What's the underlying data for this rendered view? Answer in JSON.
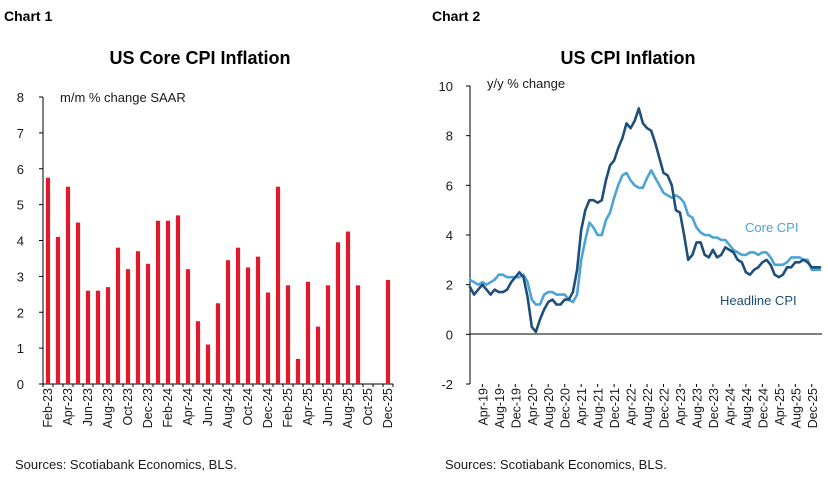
{
  "charts": [
    {
      "label": "Chart 1",
      "source": "Sources: Scotiabank Economics, BLS."
    },
    {
      "label": "Chart 2",
      "source": "Sources: Scotiabank Economics, BLS."
    }
  ],
  "colors": {
    "bar": "#e0192c",
    "headline": "#1f4e79",
    "core": "#4ba3d6",
    "axis": "#000000",
    "text": "#1a1a1a"
  },
  "chart_data": [
    {
      "type": "bar",
      "title": "US Core CPI Inflation",
      "ylabel": "m/m % change SAAR",
      "xlabel": "",
      "ylim": [
        0,
        8
      ],
      "yticks": [
        0,
        1,
        2,
        3,
        4,
        5,
        6,
        7,
        8
      ],
      "grid": false,
      "categories": [
        "Feb-23",
        "Mar-23",
        "Apr-23",
        "May-23",
        "Jun-23",
        "Jul-23",
        "Aug-23",
        "Sep-23",
        "Oct-23",
        "Nov-23",
        "Dec-23",
        "Jan-24",
        "Feb-24",
        "Mar-24",
        "Apr-24",
        "May-24",
        "Jun-24",
        "Jul-24",
        "Aug-24",
        "Sep-24",
        "Oct-24",
        "Nov-24",
        "Dec-24",
        "Jan-25",
        "Feb-25",
        "Mar-25",
        "Apr-25",
        "May-25",
        "Jun-25",
        "Jul-25",
        "Aug-25",
        "Sep-25",
        "Oct-25",
        "Nov-25",
        "Dec-25"
      ],
      "tick_labels": [
        "Feb-23",
        "Apr-23",
        "Jun-23",
        "Aug-23",
        "Oct-23",
        "Dec-23",
        "Feb-24",
        "Apr-24",
        "Jun-24",
        "Aug-24",
        "Oct-24",
        "Dec-24",
        "Feb-25",
        "Apr-25",
        "Jun-25",
        "Aug-25",
        "Oct-25",
        "Dec-25"
      ],
      "values": [
        5.75,
        4.1,
        5.5,
        4.5,
        2.6,
        2.6,
        2.7,
        3.8,
        3.2,
        3.7,
        3.35,
        4.55,
        4.55,
        4.7,
        3.2,
        1.75,
        1.1,
        2.25,
        3.45,
        3.8,
        3.25,
        3.55,
        2.55,
        5.5,
        2.75,
        0.7,
        2.85,
        1.6,
        2.75,
        3.95,
        4.25,
        2.75,
        null,
        null,
        2.9
      ]
    },
    {
      "type": "line",
      "title": "US CPI Inflation",
      "ylabel": "y/y % change",
      "xlabel": "",
      "ylim": [
        -2,
        10
      ],
      "yticks": [
        -2,
        0,
        2,
        4,
        6,
        8,
        10
      ],
      "grid": false,
      "tick_labels": [
        "Apr-19",
        "Aug-19",
        "Dec-19",
        "Apr-20",
        "Aug-20",
        "Dec-20",
        "Apr-21",
        "Aug-21",
        "Dec-21",
        "Apr-22",
        "Aug-22",
        "Dec-22",
        "Apr-23",
        "Aug-23",
        "Dec-23",
        "Apr-24",
        "Aug-24",
        "Dec-24",
        "Apr-25",
        "Aug-25",
        "Dec-25"
      ],
      "x_range": [
        "Jan-19",
        "Dec-25"
      ],
      "series": [
        {
          "name": "Core CPI",
          "values": [
            2.2,
            2.1,
            2.0,
            2.1,
            2.0,
            2.1,
            2.2,
            2.4,
            2.4,
            2.3,
            2.3,
            2.3,
            2.3,
            2.4,
            2.1,
            1.4,
            1.2,
            1.2,
            1.6,
            1.7,
            1.7,
            1.6,
            1.6,
            1.6,
            1.4,
            1.3,
            1.6,
            3.0,
            3.8,
            4.5,
            4.3,
            4.0,
            4.0,
            4.6,
            4.9,
            5.5,
            6.0,
            6.4,
            6.5,
            6.2,
            6.0,
            5.9,
            5.9,
            6.3,
            6.6,
            6.3,
            6.0,
            5.7,
            5.6,
            5.5,
            5.6,
            5.5,
            5.3,
            4.8,
            4.7,
            4.3,
            4.1,
            4.0,
            4.0,
            3.9,
            3.9,
            3.8,
            3.8,
            3.6,
            3.4,
            3.3,
            3.2,
            3.2,
            3.3,
            3.3,
            3.2,
            3.3,
            3.3,
            3.1,
            2.8,
            2.8,
            2.8,
            2.9,
            3.1,
            3.1,
            3.1,
            3.0,
            3.0,
            2.6,
            2.6,
            2.6
          ]
        },
        {
          "name": "Headline CPI",
          "values": [
            1.9,
            1.6,
            1.8,
            2.0,
            1.8,
            1.6,
            1.8,
            1.7,
            1.7,
            1.8,
            2.1,
            2.3,
            2.5,
            2.3,
            1.5,
            0.3,
            0.1,
            0.6,
            1.0,
            1.3,
            1.4,
            1.2,
            1.2,
            1.4,
            1.4,
            1.7,
            2.6,
            4.2,
            5.0,
            5.4,
            5.4,
            5.3,
            5.4,
            6.2,
            6.8,
            7.0,
            7.5,
            7.9,
            8.5,
            8.3,
            8.6,
            9.1,
            8.5,
            8.3,
            8.2,
            7.7,
            7.1,
            6.5,
            6.4,
            6.0,
            5.0,
            4.9,
            4.0,
            3.0,
            3.2,
            3.7,
            3.7,
            3.2,
            3.1,
            3.4,
            3.1,
            3.2,
            3.5,
            3.4,
            3.3,
            3.0,
            2.9,
            2.5,
            2.4,
            2.6,
            2.7,
            2.9,
            3.0,
            2.8,
            2.4,
            2.3,
            2.4,
            2.7,
            2.7,
            2.9,
            2.9,
            3.0,
            2.9,
            2.7,
            2.7,
            2.7
          ]
        }
      ],
      "annotations": [
        "Core CPI",
        "Headline CPI"
      ]
    }
  ]
}
